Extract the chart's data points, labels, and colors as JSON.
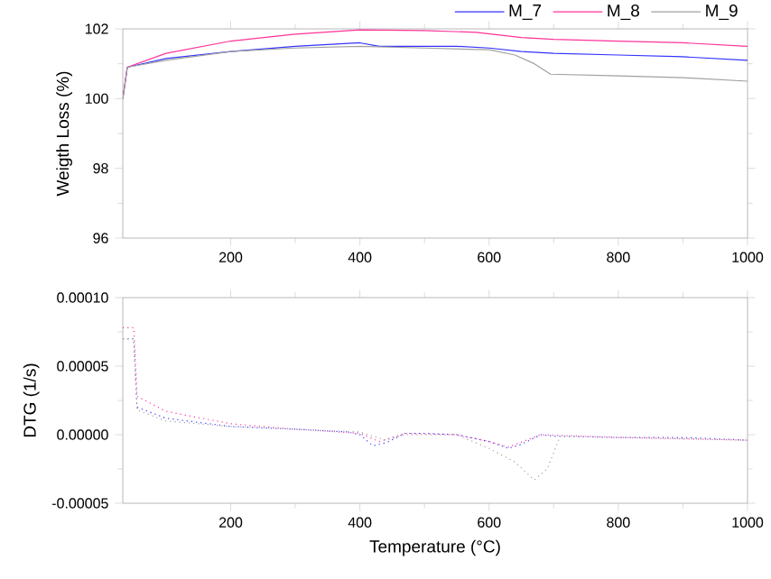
{
  "chart_data": [
    {
      "type": "line",
      "ylabel": "Weigth Loss (%)",
      "xlim": [
        33,
        1000
      ],
      "xticks": [
        200,
        400,
        600,
        800,
        1000
      ],
      "ylim": [
        96,
        102
      ],
      "yticks": [
        96,
        98,
        100,
        102
      ],
      "legend": "top right",
      "line_style": "solid",
      "marker": "none",
      "series": [
        {
          "name": "M_7",
          "color": "#3333ff",
          "x": [
            33,
            40,
            100,
            200,
            300,
            400,
            430,
            500,
            550,
            600,
            650,
            700,
            800,
            900,
            1000
          ],
          "values": [
            100,
            100.9,
            101.15,
            101.35,
            101.5,
            101.6,
            101.5,
            101.5,
            101.5,
            101.45,
            101.35,
            101.3,
            101.25,
            101.2,
            101.1
          ]
        },
        {
          "name": "M_8",
          "color": "#ff3399",
          "x": [
            33,
            40,
            100,
            200,
            300,
            400,
            500,
            580,
            650,
            700,
            800,
            900,
            1000
          ],
          "values": [
            100,
            100.9,
            101.3,
            101.65,
            101.85,
            101.97,
            101.95,
            101.9,
            101.75,
            101.7,
            101.65,
            101.6,
            101.5
          ]
        },
        {
          "name": "M_9",
          "color": "#a0a0a0",
          "x": [
            33,
            40,
            100,
            200,
            300,
            400,
            500,
            600,
            640,
            670,
            695,
            800,
            900,
            1000
          ],
          "values": [
            100,
            100.9,
            101.1,
            101.35,
            101.45,
            101.5,
            101.45,
            101.4,
            101.25,
            101.0,
            100.7,
            100.65,
            100.6,
            100.5
          ]
        }
      ]
    },
    {
      "type": "line",
      "xlabel": "Temperature (°C)",
      "ylabel": "DTG (1/s)",
      "xlim": [
        33,
        1000
      ],
      "xticks": [
        200,
        400,
        600,
        800,
        1000
      ],
      "ylim": [
        -5e-05,
        0.0001
      ],
      "yticks": [
        {
          "value": -5e-05,
          "label": "-0.00005"
        },
        {
          "value": 0,
          "label": "0.00000"
        },
        {
          "value": 5e-05,
          "label": "0.00005"
        },
        {
          "value": 0.0001,
          "label": "0.00010"
        }
      ],
      "line_style": "dotted",
      "marker": "none",
      "series": [
        {
          "color": "#3333ff",
          "x": [
            33,
            50,
            55,
            100,
            200,
            300,
            380,
            400,
            420,
            440,
            470,
            500,
            550,
            600,
            630,
            650,
            680,
            700,
            800,
            900,
            1000
          ],
          "values": [
            7e-05,
            7e-05,
            2e-05,
            1.2e-05,
            6e-06,
            4e-06,
            2e-06,
            0,
            -8e-06,
            -6e-06,
            1e-06,
            1e-06,
            0,
            -5e-06,
            -1e-05,
            -7e-06,
            0,
            -1e-06,
            -2e-06,
            -2e-06,
            -4e-06
          ]
        },
        {
          "color": "#ff3399",
          "x": [
            33,
            50,
            55,
            100,
            200,
            300,
            400,
            430,
            470,
            550,
            600,
            630,
            680,
            800,
            1000
          ],
          "values": [
            7.8e-05,
            7.8e-05,
            2.8e-05,
            1.7e-05,
            8e-06,
            4e-06,
            1e-06,
            -5e-06,
            1e-06,
            0,
            -5e-06,
            -9e-06,
            0,
            -2e-06,
            -4e-06
          ]
        },
        {
          "color": "#a0a0a0",
          "x": [
            33,
            50,
            55,
            100,
            200,
            300,
            400,
            440,
            470,
            550,
            600,
            640,
            670,
            690,
            710,
            800,
            1000
          ],
          "values": [
            7e-05,
            7e-05,
            1.8e-05,
            1e-05,
            6e-06,
            4e-06,
            2e-06,
            -4e-06,
            0,
            0,
            -1e-05,
            -2e-05,
            -3.3e-05,
            -2.5e-05,
            -1e-06,
            -2e-06,
            -4e-06
          ]
        }
      ]
    }
  ]
}
